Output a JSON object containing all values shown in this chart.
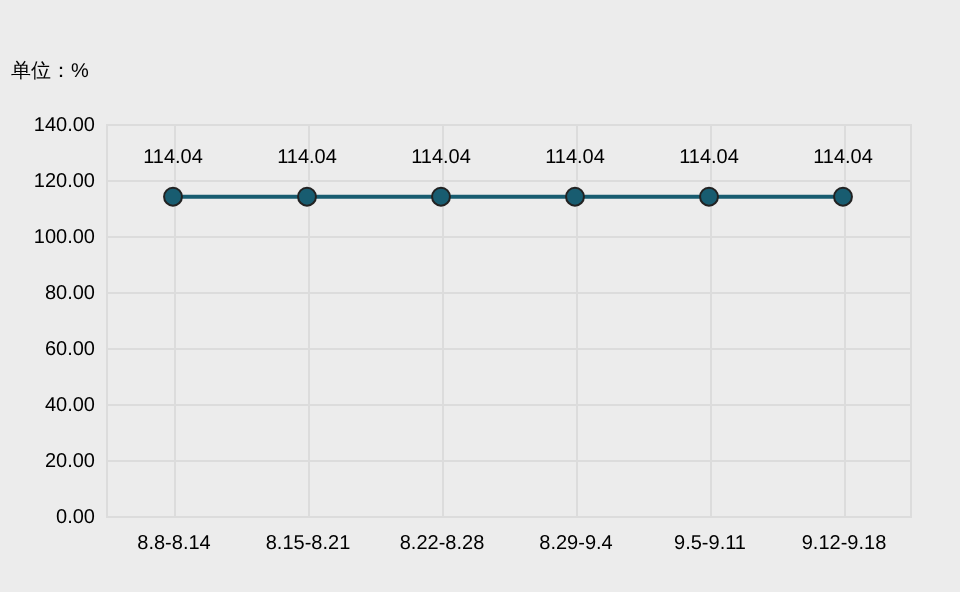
{
  "chart_data": {
    "type": "line",
    "ylabel": "单位：%",
    "categories": [
      "8.8-8.14",
      "8.15-8.21",
      "8.22-8.28",
      "8.29-9.4",
      "9.5-9.11",
      "9.12-9.18"
    ],
    "series": [
      {
        "color": "#185c70",
        "values": [
          114.04,
          114.04,
          114.04,
          114.04,
          114.04,
          114.04
        ]
      }
    ],
    "ylim": [
      0,
      140
    ],
    "yticks": [
      {
        "value": 0,
        "label": "0.00"
      },
      {
        "value": 20,
        "label": "20.00"
      },
      {
        "value": 40,
        "label": "40.00"
      },
      {
        "value": 60,
        "label": "60.00"
      },
      {
        "value": 80,
        "label": "80.00"
      },
      {
        "value": 100,
        "label": "100.00"
      },
      {
        "value": 120,
        "label": "120.00"
      },
      {
        "value": 140,
        "label": "140.00"
      }
    ],
    "data_labels": true,
    "grid": true,
    "marker": "circle",
    "line_style": "solid",
    "legend": false
  }
}
